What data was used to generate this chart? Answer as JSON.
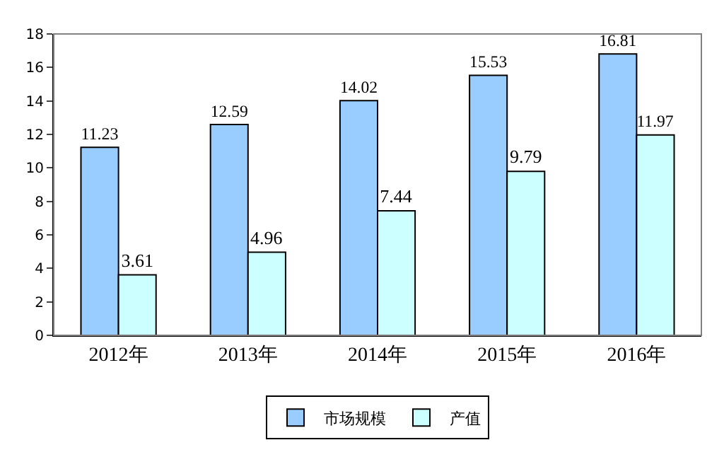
{
  "chart_data": {
    "type": "bar",
    "categories": [
      "2012年",
      "2013年",
      "2014年",
      "2015年",
      "2016年"
    ],
    "series": [
      {
        "name": "市场规模",
        "color": "#99ccff",
        "values": [
          11.23,
          12.59,
          14.02,
          15.53,
          16.81
        ]
      },
      {
        "name": "产值",
        "color": "#ccffff",
        "values": [
          3.61,
          4.96,
          7.44,
          9.79,
          11.97
        ]
      }
    ],
    "ylim": [
      0,
      18
    ],
    "yticks": [
      0,
      2,
      4,
      6,
      8,
      10,
      12,
      14,
      16,
      18
    ],
    "grid": false,
    "legend": "bottom",
    "data_labels": true
  }
}
